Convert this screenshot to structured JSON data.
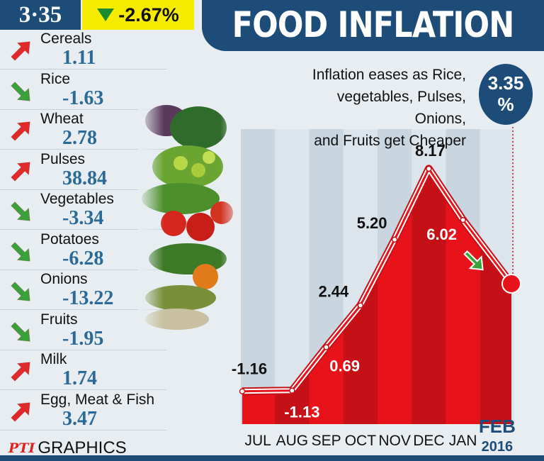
{
  "header": {
    "value": "3·35",
    "change": "-2.67%",
    "title": "FOOD INFLATION"
  },
  "subtitle_lines": [
    "Inflation eases as Rice,",
    "vegetables, Pulses, Onions,",
    "and Fruits get Cheaper"
  ],
  "badge": {
    "value": "3.35",
    "unit": "%"
  },
  "colors": {
    "navy": "#1d4c78",
    "yellow": "#f6ec00",
    "area_red": "#e8121a",
    "up_arrow": "#e02a2a",
    "down_arrow": "#3aa03c",
    "value_blue": "#2b6a97"
  },
  "categories": [
    {
      "name": "Cereals",
      "value": "1.11",
      "trend": "up"
    },
    {
      "name": "Rice",
      "value": "-1.63",
      "trend": "down"
    },
    {
      "name": "Wheat",
      "value": "2.78",
      "trend": "up"
    },
    {
      "name": "Pulses",
      "value": "38.84",
      "trend": "up"
    },
    {
      "name": "Vegetables",
      "value": "-3.34",
      "trend": "down"
    },
    {
      "name": "Potatoes",
      "value": "-6.28",
      "trend": "down"
    },
    {
      "name": "Onions",
      "value": "-13.22",
      "trend": "down"
    },
    {
      "name": "Fruits",
      "value": "-1.95",
      "trend": "down"
    },
    {
      "name": "Milk",
      "value": "1.74",
      "trend": "up"
    },
    {
      "name": "Egg, Meat & Fish",
      "value": "3.47",
      "trend": "up"
    }
  ],
  "chart_data": {
    "type": "area",
    "title": "FOOD INFLATION",
    "categories": [
      "JUL",
      "AUG",
      "SEP",
      "OCT",
      "NOV",
      "DEC",
      "JAN",
      "FEB"
    ],
    "values": [
      -1.16,
      -1.13,
      0.69,
      2.44,
      5.2,
      8.17,
      6.02,
      3.35
    ],
    "data_labels": [
      "-1.16",
      "-1.13",
      "0.69",
      "2.44",
      "5.20",
      "8.17",
      "6.02",
      ""
    ],
    "last_label_year": "2016",
    "ylim": [
      -2,
      9
    ]
  },
  "logo": {
    "mark": "PTI",
    "text": "GRAPHICS"
  }
}
